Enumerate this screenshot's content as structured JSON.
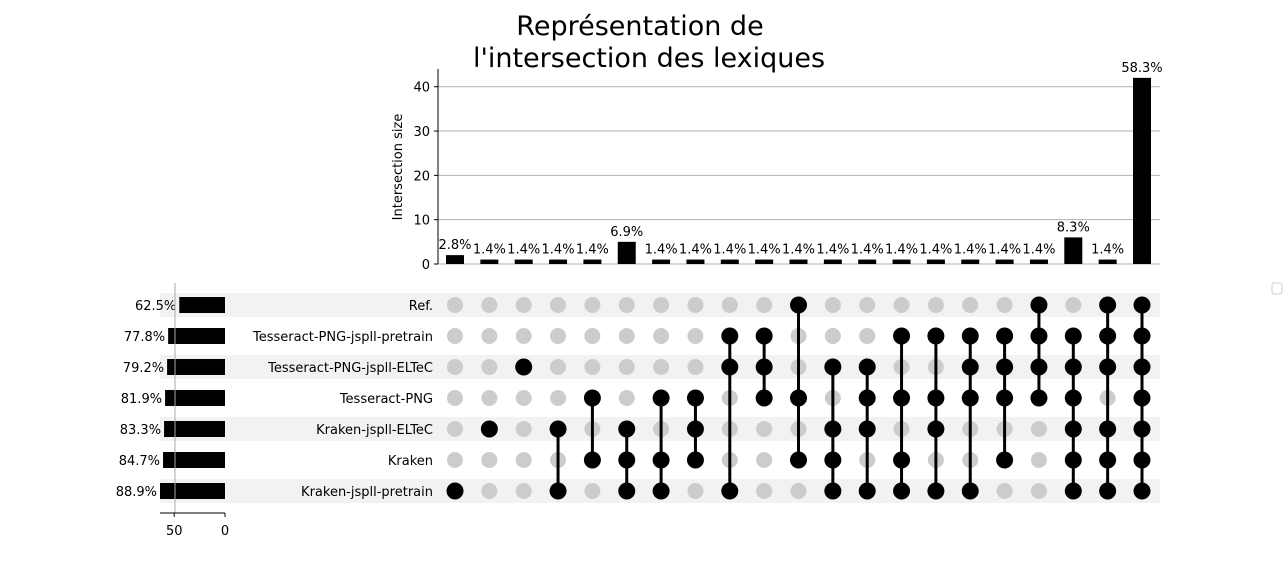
{
  "chart_data": {
    "type": "upset",
    "title_lines": [
      "Représentation de",
      "l'intersection des lexiques"
    ],
    "ylabel": "Intersection size",
    "ylim": [
      0,
      44
    ],
    "yticks": [
      0,
      10,
      20,
      30,
      40
    ],
    "grid": true,
    "sets": [
      {
        "name": "Ref.",
        "pct_label": "62.5%",
        "size": 45
      },
      {
        "name": "Tesseract-PNG-jspll-pretrain",
        "pct_label": "77.8%",
        "size": 56
      },
      {
        "name": "Tesseract-PNG-jspll-ELTeC",
        "pct_label": "79.2%",
        "size": 57
      },
      {
        "name": "Tesseract-PNG",
        "pct_label": "81.9%",
        "size": 59
      },
      {
        "name": "Kraken-jspll-ELTeC",
        "pct_label": "83.3%",
        "size": 60
      },
      {
        "name": "Kraken",
        "pct_label": "84.7%",
        "size": 61
      },
      {
        "name": "Kraken-jspll-pretrain",
        "pct_label": "88.9%",
        "size": 64
      }
    ],
    "set_size_ticks": [
      50,
      0
    ],
    "set_size_xlim": [
      0,
      64
    ],
    "intersections": [
      {
        "size": 2,
        "label": "2.8%",
        "members": [
          "Kraken-jspll-pretrain"
        ]
      },
      {
        "size": 1,
        "label": "1.4%",
        "members": [
          "Kraken-jspll-ELTeC"
        ]
      },
      {
        "size": 1,
        "label": "1.4%",
        "members": [
          "Tesseract-PNG-jspll-ELTeC"
        ]
      },
      {
        "size": 1,
        "label": "1.4%",
        "members": [
          "Kraken-jspll-ELTeC",
          "Kraken-jspll-pretrain"
        ]
      },
      {
        "size": 1,
        "label": "1.4%",
        "members": [
          "Tesseract-PNG",
          "Kraken"
        ]
      },
      {
        "size": 5,
        "label": "6.9%",
        "members": [
          "Kraken-jspll-ELTeC",
          "Kraken",
          "Kraken-jspll-pretrain"
        ]
      },
      {
        "size": 1,
        "label": "1.4%",
        "members": [
          "Tesseract-PNG",
          "Kraken",
          "Kraken-jspll-pretrain"
        ]
      },
      {
        "size": 1,
        "label": "1.4%",
        "members": [
          "Tesseract-PNG",
          "Kraken-jspll-ELTeC",
          "Kraken"
        ]
      },
      {
        "size": 1,
        "label": "1.4%",
        "members": [
          "Tesseract-PNG-jspll-pretrain",
          "Tesseract-PNG-jspll-ELTeC",
          "Kraken-jspll-pretrain"
        ]
      },
      {
        "size": 1,
        "label": "1.4%",
        "members": [
          "Tesseract-PNG-jspll-pretrain",
          "Tesseract-PNG-jspll-ELTeC",
          "Tesseract-PNG"
        ]
      },
      {
        "size": 1,
        "label": "1.4%",
        "members": [
          "Ref.",
          "Tesseract-PNG",
          "Kraken"
        ]
      },
      {
        "size": 1,
        "label": "1.4%",
        "members": [
          "Tesseract-PNG-jspll-ELTeC",
          "Kraken-jspll-ELTeC",
          "Kraken",
          "Kraken-jspll-pretrain"
        ]
      },
      {
        "size": 1,
        "label": "1.4%",
        "members": [
          "Tesseract-PNG-jspll-ELTeC",
          "Tesseract-PNG",
          "Kraken-jspll-ELTeC",
          "Kraken-jspll-pretrain"
        ]
      },
      {
        "size": 1,
        "label": "1.4%",
        "members": [
          "Tesseract-PNG-jspll-pretrain",
          "Tesseract-PNG",
          "Kraken",
          "Kraken-jspll-pretrain"
        ]
      },
      {
        "size": 1,
        "label": "1.4%",
        "members": [
          "Tesseract-PNG-jspll-pretrain",
          "Tesseract-PNG",
          "Kraken-jspll-ELTeC",
          "Kraken-jspll-pretrain"
        ]
      },
      {
        "size": 1,
        "label": "1.4%",
        "members": [
          "Tesseract-PNG-jspll-pretrain",
          "Tesseract-PNG-jspll-ELTeC",
          "Tesseract-PNG",
          "Kraken-jspll-pretrain"
        ]
      },
      {
        "size": 1,
        "label": "1.4%",
        "members": [
          "Tesseract-PNG-jspll-pretrain",
          "Tesseract-PNG-jspll-ELTeC",
          "Tesseract-PNG",
          "Kraken"
        ]
      },
      {
        "size": 1,
        "label": "1.4%",
        "members": [
          "Ref.",
          "Tesseract-PNG-jspll-pretrain",
          "Tesseract-PNG-jspll-ELTeC",
          "Tesseract-PNG"
        ]
      },
      {
        "size": 6,
        "label": "8.3%",
        "members": [
          "Tesseract-PNG-jspll-pretrain",
          "Tesseract-PNG-jspll-ELTeC",
          "Tesseract-PNG",
          "Kraken-jspll-ELTeC",
          "Kraken",
          "Kraken-jspll-pretrain"
        ]
      },
      {
        "size": 1,
        "label": "1.4%",
        "members": [
          "Ref.",
          "Tesseract-PNG-jspll-pretrain",
          "Tesseract-PNG-jspll-ELTeC",
          "Kraken-jspll-ELTeC",
          "Kraken",
          "Kraken-jspll-pretrain"
        ]
      },
      {
        "size": 42,
        "label": "58.3%",
        "members": [
          "Ref.",
          "Tesseract-PNG-jspll-pretrain",
          "Tesseract-PNG-jspll-ELTeC",
          "Tesseract-PNG",
          "Kraken-jspll-ELTeC",
          "Kraken",
          "Kraken-jspll-pretrain"
        ]
      }
    ],
    "colors": {
      "bar": "#000000",
      "dot_active": "#000000",
      "dot_inactive": "#cccccc",
      "stripe": "#f2f2f2",
      "grid": "#b0b0b0"
    }
  }
}
